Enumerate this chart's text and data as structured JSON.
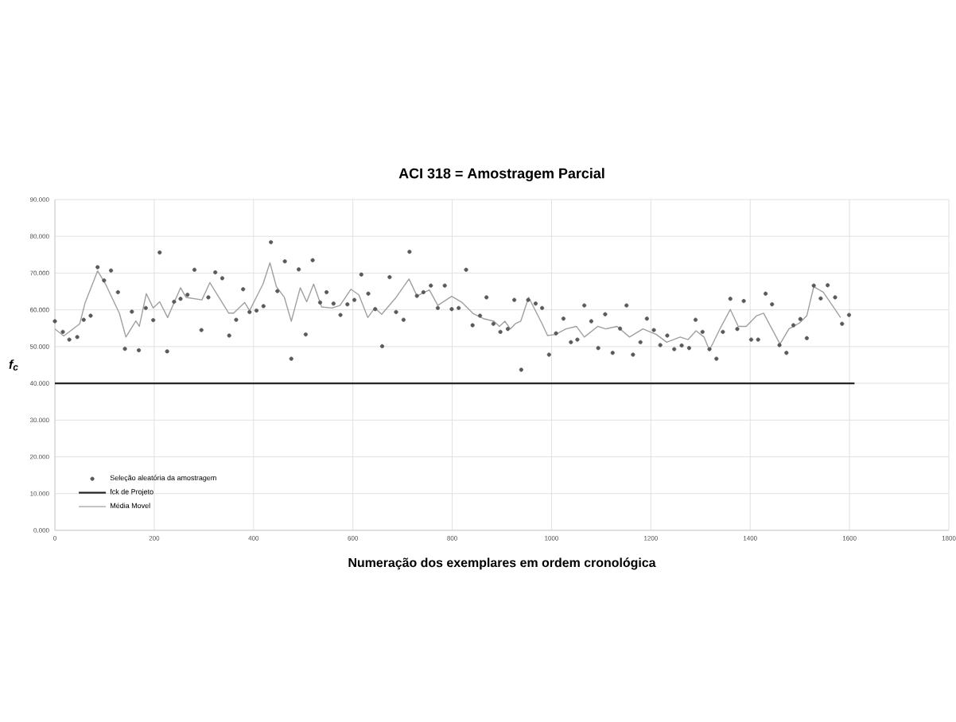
{
  "chart_data": {
    "type": "scatter",
    "title": "ACI 318 = Amostragem Parcial",
    "xlabel": "Numeração dos exemplares em ordem cronológica",
    "ylabel": "f$_{c}$",
    "xlim": [
      0,
      1800
    ],
    "xticks": [
      0,
      200,
      400,
      600,
      800,
      1000,
      1200,
      1400,
      1600,
      1800
    ],
    "ylim": [
      0,
      90
    ],
    "yticks": [
      {
        "value": 0,
        "label": "0.000"
      },
      {
        "value": 10,
        "label": "10.000"
      },
      {
        "value": 20,
        "label": "20.000"
      },
      {
        "value": 30,
        "label": "30.000"
      },
      {
        "value": 40,
        "label": "40.000"
      },
      {
        "value": 50,
        "label": "50.000"
      },
      {
        "value": 60,
        "label": "60.000"
      },
      {
        "value": 70,
        "label": "70.000"
      },
      {
        "value": 80,
        "label": "80.000"
      },
      {
        "value": 90,
        "label": "90.000"
      }
    ],
    "grid": true,
    "legend": "bottom left",
    "series": [
      {
        "name": "Seleção aleatória da amostragem",
        "marker": "circle",
        "color": "#595959",
        "x": [
          0,
          16,
          29,
          45,
          58,
          72,
          86,
          99,
          113,
          127,
          141,
          155,
          169,
          183,
          198,
          211,
          226,
          240,
          253,
          267,
          281,
          295,
          309,
          323,
          337,
          351,
          365,
          379,
          392,
          406,
          420,
          435,
          448,
          463,
          476,
          491,
          505,
          519,
          534,
          547,
          561,
          575,
          589,
          603,
          617,
          631,
          645,
          659,
          674,
          687,
          702,
          714,
          729,
          742,
          757,
          771,
          785,
          799,
          813,
          828,
          841,
          856,
          869,
          883,
          897,
          912,
          925,
          939,
          953,
          968,
          981,
          995,
          1009,
          1024,
          1039,
          1052,
          1066,
          1080,
          1094,
          1108,
          1123,
          1138,
          1151,
          1164,
          1179,
          1192,
          1206,
          1219,
          1233,
          1247,
          1262,
          1277,
          1290,
          1304,
          1318,
          1332,
          1345,
          1360,
          1374,
          1387,
          1402,
          1416,
          1431,
          1444,
          1459,
          1473,
          1487,
          1501,
          1514,
          1528,
          1542,
          1556,
          1571,
          1585,
          1599
        ],
        "values": [
          56.9,
          54.0,
          51.9,
          52.6,
          57.3,
          58.4,
          71.6,
          68.0,
          70.7,
          64.8,
          49.4,
          59.5,
          49.0,
          60.5,
          57.2,
          75.6,
          48.7,
          62.2,
          63.0,
          64.1,
          70.9,
          54.5,
          63.4,
          70.2,
          68.6,
          53.0,
          57.3,
          65.6,
          59.4,
          59.8,
          61.0,
          78.4,
          65.1,
          73.2,
          46.7,
          71.0,
          53.3,
          73.5,
          62.0,
          64.8,
          61.7,
          58.6,
          61.5,
          62.7,
          69.6,
          64.4,
          60.2,
          50.1,
          68.9,
          59.4,
          57.3,
          75.8,
          63.8,
          64.8,
          66.6,
          60.5,
          66.6,
          60.2,
          60.5,
          70.9,
          55.8,
          58.4,
          63.4,
          56.2,
          54.0,
          54.8,
          62.7,
          43.7,
          62.7,
          61.7,
          60.5,
          47.8,
          53.6,
          57.6,
          51.2,
          51.9,
          61.2,
          56.9,
          49.6,
          58.8,
          48.3,
          54.9,
          61.2,
          47.8,
          51.2,
          57.6,
          54.5,
          50.4,
          53.0,
          49.3,
          50.3,
          49.6,
          57.3,
          54.0,
          49.3,
          46.7,
          54.0,
          63.0,
          54.8,
          62.4,
          51.9,
          51.9,
          64.4,
          61.5,
          50.4,
          48.3,
          55.8,
          57.5,
          52.3,
          66.6,
          63.1,
          66.7,
          63.4,
          56.2,
          58.6
        ]
      },
      {
        "name": "fck de Projeto",
        "type": "line",
        "marker": "none",
        "color": "#262626",
        "x": [
          0,
          1610
        ],
        "values": [
          40,
          40
        ]
      },
      {
        "name": "Média Movel",
        "type": "line",
        "marker": "none",
        "color": "#a0a0a0",
        "x": [
          0,
          18,
          50,
          61,
          86,
          102,
          130,
          143,
          163,
          170,
          184,
          198,
          211,
          227,
          253,
          264,
          296,
          312,
          350,
          360,
          382,
          392,
          419,
          433,
          446,
          462,
          476,
          494,
          507,
          521,
          537,
          558,
          574,
          596,
          612,
          630,
          644,
          658,
          687,
          713,
          729,
          754,
          771,
          799,
          820,
          842,
          863,
          884,
          895,
          906,
          917,
          927,
          938,
          954,
          981,
          992,
          1008,
          1029,
          1050,
          1066,
          1093,
          1109,
          1132,
          1157,
          1184,
          1211,
          1232,
          1259,
          1275,
          1291,
          1307,
          1318,
          1339,
          1360,
          1376,
          1392,
          1413,
          1427,
          1441,
          1460,
          1478,
          1500,
          1514,
          1528,
          1547,
          1569,
          1582
        ],
        "values": [
          54.8,
          52.9,
          56.2,
          62.0,
          70.6,
          67.0,
          59.0,
          52.6,
          57.0,
          55.5,
          64.4,
          60.5,
          62.2,
          57.9,
          66.0,
          63.4,
          62.7,
          67.4,
          59.1,
          59.1,
          62.0,
          59.8,
          67.0,
          72.8,
          66.3,
          63.4,
          56.9,
          66.0,
          62.2,
          67.0,
          60.8,
          60.5,
          61.2,
          65.6,
          64.1,
          57.9,
          60.5,
          58.8,
          63.4,
          68.4,
          63.8,
          65.4,
          61.2,
          63.7,
          62.0,
          59.0,
          57.6,
          56.9,
          55.5,
          56.9,
          54.8,
          56.2,
          56.9,
          63.4,
          56.2,
          53.0,
          53.3,
          54.8,
          55.5,
          52.6,
          55.5,
          54.8,
          55.5,
          52.6,
          54.8,
          53.3,
          51.2,
          52.6,
          51.9,
          54.3,
          52.6,
          49.0,
          54.8,
          60.1,
          55.5,
          55.5,
          58.4,
          59.1,
          55.5,
          50.7,
          54.8,
          56.5,
          58.4,
          66.3,
          64.8,
          60.5,
          57.9
        ]
      }
    ]
  }
}
